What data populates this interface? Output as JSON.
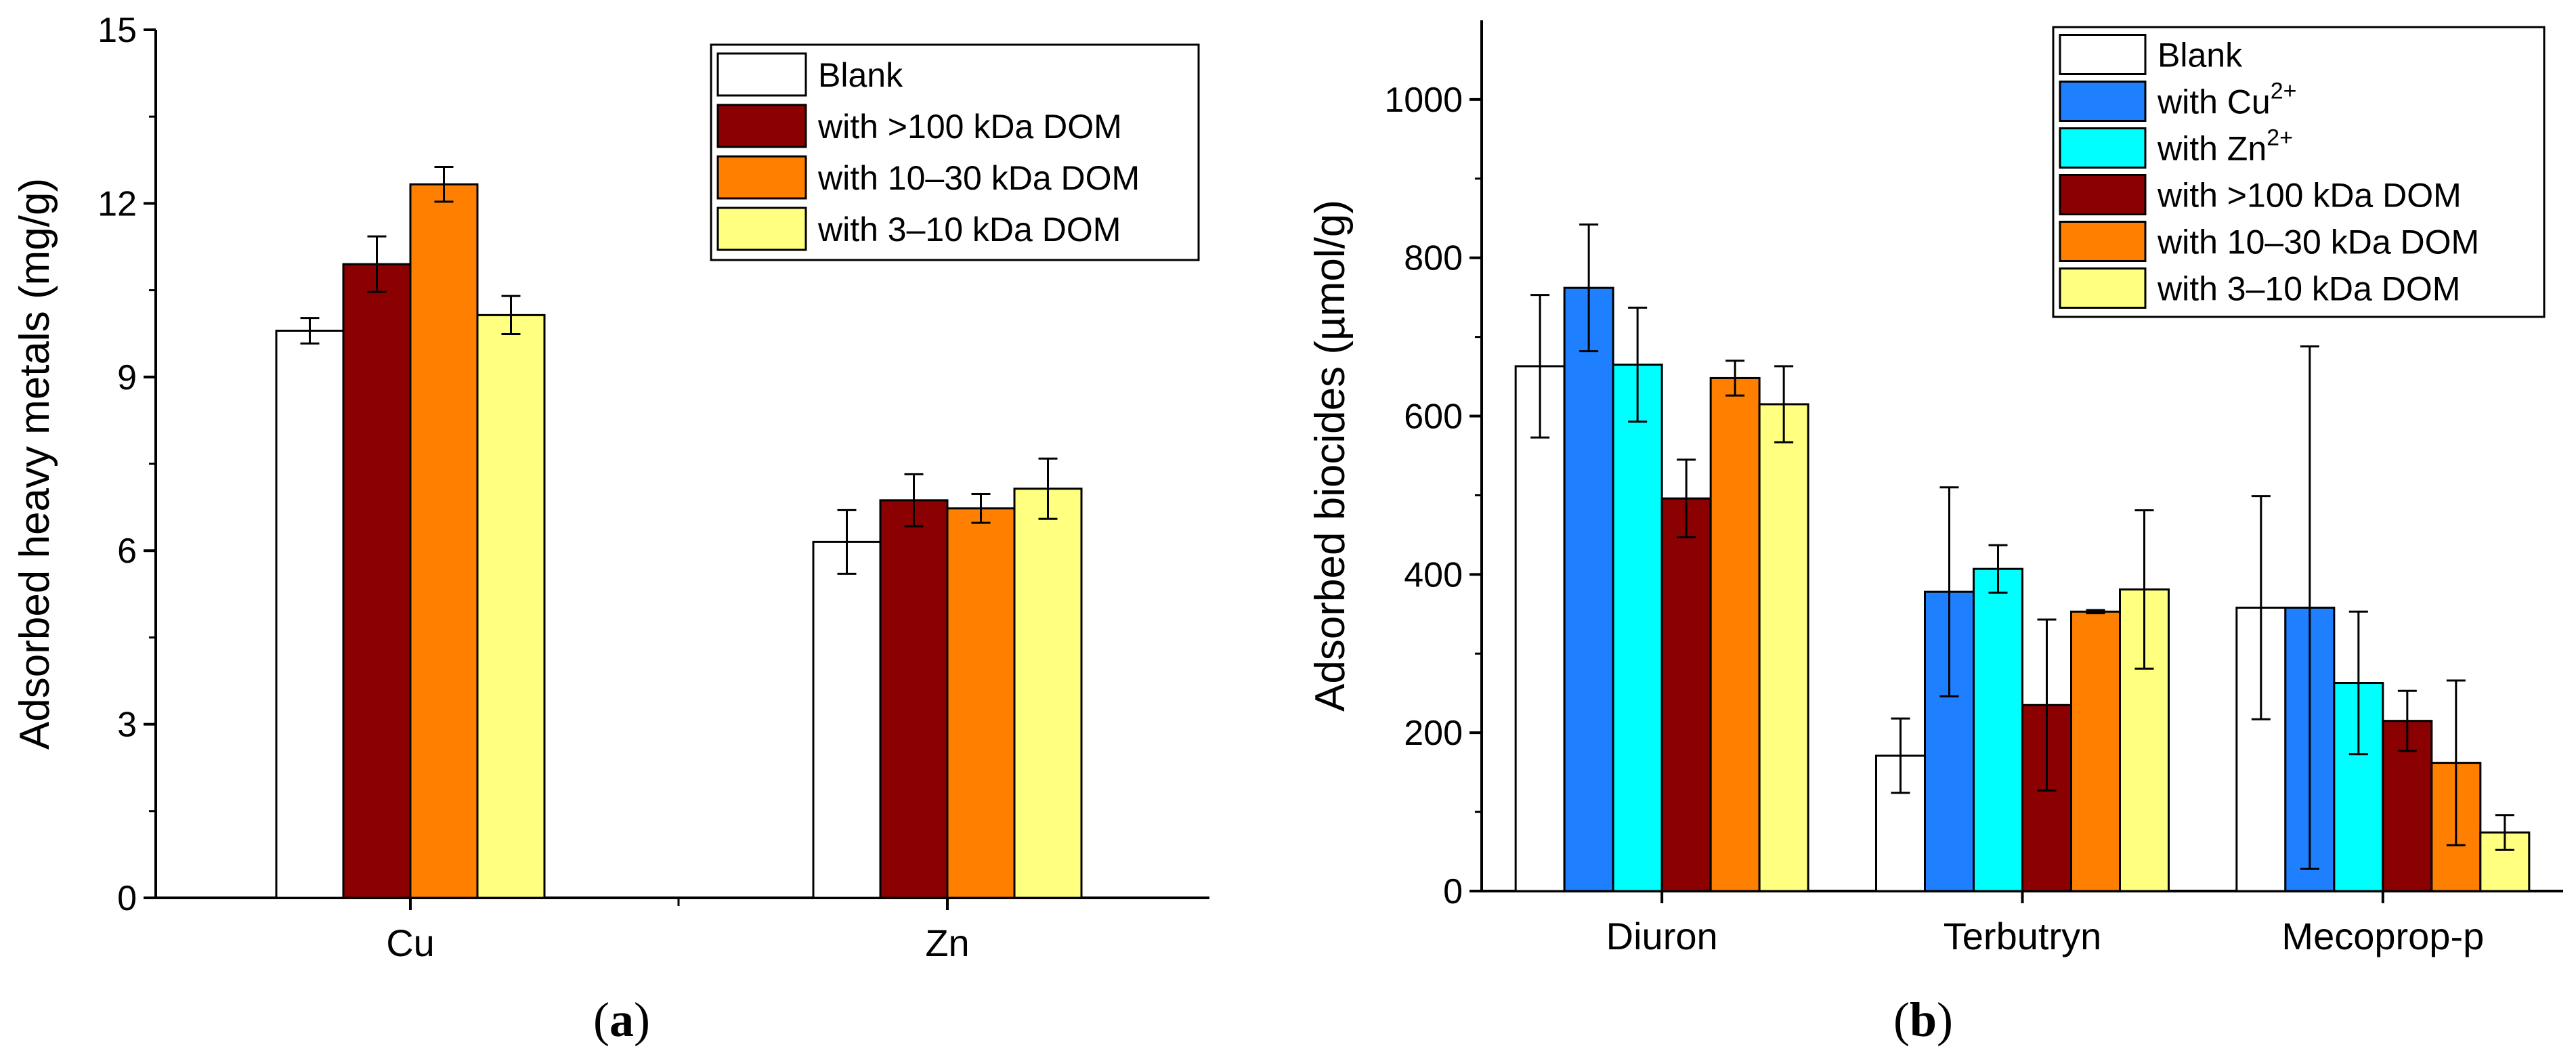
{
  "chart_data": [
    {
      "type": "bar",
      "panel_label": {
        "open": "(",
        "letter": "a",
        "close": ")"
      },
      "ylabel": "Adsorbed heavy metals (mg/g)",
      "xlabel": "",
      "ylim": [
        0,
        15
      ],
      "yticks": [
        0,
        3,
        6,
        9,
        12,
        15
      ],
      "categories": [
        "Cu",
        "Zn"
      ],
      "legend_position": "top-right",
      "series": [
        {
          "name": "Blank",
          "color": "#FFFFFF",
          "values": [
            9.8,
            6.15
          ],
          "errors": [
            0.22,
            0.55
          ]
        },
        {
          "name": "with >100 kDa DOM",
          "color": "#8B0000",
          "values": [
            10.95,
            6.87
          ],
          "errors": [
            0.48,
            0.45
          ]
        },
        {
          "name": "with 10–30 kDa DOM",
          "color": "#FF8000",
          "values": [
            12.33,
            6.73
          ],
          "errors": [
            0.3,
            0.25
          ]
        },
        {
          "name": "with 3–10 kDa DOM",
          "color": "#FFFF80",
          "values": [
            10.07,
            7.07
          ],
          "errors": [
            0.33,
            0.52
          ]
        }
      ]
    },
    {
      "type": "bar",
      "panel_label": {
        "open": "(",
        "letter": "b",
        "close": ")"
      },
      "ylabel": "Adsorbed biocides (µmol/g)",
      "xlabel": "",
      "ylim": [
        0,
        1100
      ],
      "yticks": [
        0,
        200,
        400,
        600,
        800,
        1000
      ],
      "categories": [
        "Diuron",
        "Terbutryn",
        "Mecoprop-p"
      ],
      "legend_position": "top-right",
      "series": [
        {
          "name": "Blank",
          "sup": "",
          "color": "#FFFFFF",
          "values": [
            663,
            171,
            358
          ],
          "errors": [
            90,
            47,
            141
          ]
        },
        {
          "name": "with Cu",
          "sup": "2+",
          "color": "#1E7FFF",
          "values": [
            762,
            378,
            358
          ],
          "errors": [
            80,
            132,
            330
          ]
        },
        {
          "name": "with Zn",
          "sup": "2+",
          "color": "#00FFFF",
          "values": [
            665,
            407,
            263
          ],
          "errors": [
            72,
            30,
            90
          ]
        },
        {
          "name": "with >100 kDa DOM",
          "sup": "",
          "color": "#8B0000",
          "values": [
            496,
            235,
            215
          ],
          "errors": [
            49,
            108,
            38
          ]
        },
        {
          "name": "with 10–30 kDa DOM",
          "sup": "",
          "color": "#FF8000",
          "values": [
            648,
            353,
            162
          ],
          "errors": [
            22,
            2,
            104
          ]
        },
        {
          "name": "with 3–10 kDa DOM",
          "sup": "",
          "color": "#FFFF80",
          "values": [
            615,
            381,
            74
          ],
          "errors": [
            48,
            100,
            22
          ]
        }
      ]
    }
  ]
}
